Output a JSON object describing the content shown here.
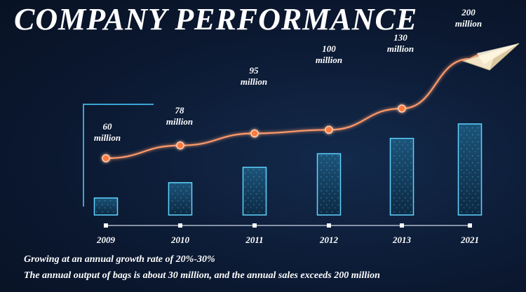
{
  "title": "COMPANY PERFORMANCE",
  "captions": [
    "Growing at an annual growth rate of 20%-30%",
    "The annual output of bags is about 30 million, and the annual sales exceeds 200 million"
  ],
  "colors": {
    "background": "#0b1830",
    "bar_stroke": "#5fd4ff",
    "bar_fill": "#0f3350",
    "line": "#ff9a6a",
    "marker": "#ff7a3d",
    "axis": "#3fb4e6",
    "text": "#ffffff"
  },
  "icons": {
    "trend_end": "paper-plane-icon"
  },
  "chart_data": {
    "type": "bar",
    "title": "COMPANY PERFORMANCE",
    "categories": [
      "2009",
      "2010",
      "2011",
      "2012",
      "2013",
      "2021"
    ],
    "bar_values": [
      20,
      38,
      56,
      72,
      90,
      107
    ],
    "series": [
      {
        "values": [
          60,
          78,
          95,
          100,
          130,
          200
        ],
        "labels": [
          "60\nmillion",
          "78\nmillion",
          "95\nmillion",
          "100\nmillion",
          "130\nmillion",
          "200\nmillion"
        ],
        "type": "line"
      }
    ],
    "xlabel": "",
    "ylabel": "",
    "grid": false,
    "legend": "none"
  }
}
